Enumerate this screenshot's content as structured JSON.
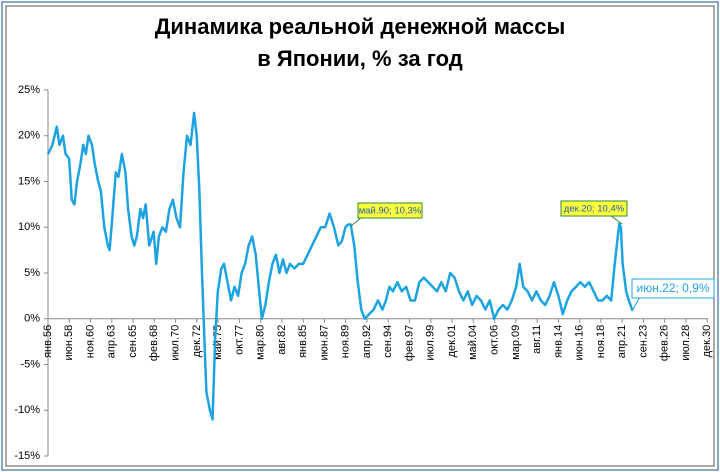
{
  "chart_data": {
    "type": "line",
    "title": [
      "Динамика реальной денежной массы",
      "в Японии, % за год"
    ],
    "color": "#1ea3e2",
    "xlim": [
      1956,
      2031
    ],
    "xticks": [
      {
        "value": 1956.0,
        "label": "янв.56"
      },
      {
        "value": 1958.417,
        "label": "июн.58"
      },
      {
        "value": 1960.833,
        "label": "ноя.60"
      },
      {
        "value": 1963.25,
        "label": "апр.63"
      },
      {
        "value": 1965.667,
        "label": "сен.65"
      },
      {
        "value": 1968.083,
        "label": "фев.68"
      },
      {
        "value": 1970.5,
        "label": "июл.70"
      },
      {
        "value": 1972.917,
        "label": "дек.72"
      },
      {
        "value": 1975.333,
        "label": "май.75"
      },
      {
        "value": 1977.75,
        "label": "окт.77"
      },
      {
        "value": 1980.167,
        "label": "мар.80"
      },
      {
        "value": 1982.583,
        "label": "авг.82"
      },
      {
        "value": 1985.0,
        "label": "янв.85"
      },
      {
        "value": 1987.417,
        "label": "июн.87"
      },
      {
        "value": 1989.833,
        "label": "ноя.89"
      },
      {
        "value": 1992.25,
        "label": "апр.92"
      },
      {
        "value": 1994.667,
        "label": "сен.94"
      },
      {
        "value": 1997.083,
        "label": "фев.97"
      },
      {
        "value": 1999.5,
        "label": "июл.99"
      },
      {
        "value": 2001.917,
        "label": "дек.01"
      },
      {
        "value": 2004.333,
        "label": "май.04"
      },
      {
        "value": 2006.75,
        "label": "окт.06"
      },
      {
        "value": 2009.167,
        "label": "мар.09"
      },
      {
        "value": 2011.583,
        "label": "авг.11"
      },
      {
        "value": 2014.0,
        "label": "янв.14"
      },
      {
        "value": 2016.417,
        "label": "июн.16"
      },
      {
        "value": 2018.833,
        "label": "ноя.18"
      },
      {
        "value": 2021.25,
        "label": "апр.21"
      },
      {
        "value": 2023.667,
        "label": "сен.23"
      },
      {
        "value": 2026.083,
        "label": "фев.26"
      },
      {
        "value": 2028.5,
        "label": "июл.28"
      },
      {
        "value": 2030.917,
        "label": "дек.30"
      }
    ],
    "ylim": [
      -15,
      25
    ],
    "yticks": [
      {
        "value": 25,
        "label": "25%"
      },
      {
        "value": 20,
        "label": "20%"
      },
      {
        "value": 15,
        "label": "15%"
      },
      {
        "value": 10,
        "label": "10%"
      },
      {
        "value": 5,
        "label": "5%"
      },
      {
        "value": 0,
        "label": "0%"
      },
      {
        "value": -5,
        "label": "-5%"
      },
      {
        "value": -10,
        "label": "-10%"
      },
      {
        "value": -15,
        "label": "-15%"
      }
    ],
    "x": [
      1956.0,
      1956.5,
      1957.0,
      1957.3,
      1957.7,
      1958.0,
      1958.4,
      1958.7,
      1959.0,
      1959.3,
      1959.7,
      1960.0,
      1960.3,
      1960.6,
      1961.0,
      1961.3,
      1961.7,
      1962.0,
      1962.4,
      1962.8,
      1963.0,
      1963.3,
      1963.7,
      1964.0,
      1964.4,
      1964.8,
      1965.1,
      1965.5,
      1965.8,
      1966.1,
      1966.5,
      1966.8,
      1967.1,
      1967.5,
      1968.0,
      1968.3,
      1968.6,
      1969.0,
      1969.4,
      1969.8,
      1970.2,
      1970.6,
      1971.0,
      1971.4,
      1971.8,
      1972.2,
      1972.6,
      1972.9,
      1973.2,
      1973.5,
      1973.8,
      1974.0,
      1974.4,
      1974.7,
      1975.0,
      1975.3,
      1975.7,
      1976.0,
      1976.4,
      1976.8,
      1977.2,
      1977.6,
      1978.0,
      1978.4,
      1978.8,
      1979.2,
      1979.6,
      1980.0,
      1980.3,
      1980.7,
      1981.1,
      1981.5,
      1981.9,
      1982.3,
      1982.7,
      1983.1,
      1983.5,
      1984.0,
      1984.5,
      1985.0,
      1985.5,
      1986.0,
      1986.5,
      1987.0,
      1987.5,
      1988.0,
      1988.5,
      1989.0,
      1989.4,
      1989.8,
      1990.1,
      1990.4,
      1990.8,
      1991.2,
      1991.6,
      1992.0,
      1992.5,
      1993.0,
      1993.5,
      1994.0,
      1994.4,
      1994.8,
      1995.2,
      1995.7,
      1996.2,
      1996.7,
      1997.2,
      1997.7,
      1998.2,
      1998.7,
      1999.2,
      1999.7,
      2000.2,
      2000.7,
      2001.2,
      2001.7,
      2002.2,
      2002.7,
      2003.2,
      2003.7,
      2004.2,
      2004.7,
      2005.2,
      2005.7,
      2006.2,
      2006.7,
      2007.2,
      2007.7,
      2008.2,
      2008.7,
      2009.2,
      2009.6,
      2010.0,
      2010.5,
      2011.0,
      2011.5,
      2012.0,
      2012.5,
      2013.0,
      2013.5,
      2014.0,
      2014.5,
      2015.0,
      2015.5,
      2016.0,
      2016.5,
      2017.0,
      2017.5,
      2018.0,
      2018.5,
      2019.0,
      2019.5,
      2020.0,
      2020.4,
      2020.917,
      2021.1,
      2021.3,
      2021.7,
      2022.0,
      2022.417
    ],
    "values": [
      18,
      19,
      21,
      19,
      20,
      18,
      17.5,
      13,
      12.5,
      15,
      17,
      19,
      18,
      20,
      19,
      17,
      15,
      14,
      10,
      8,
      7.5,
      11,
      16,
      15.5,
      18,
      16,
      12,
      9,
      8,
      9,
      12,
      11,
      12.5,
      8,
      9.5,
      6,
      9,
      10,
      9.5,
      12,
      13,
      11,
      10,
      16,
      20,
      19,
      22.5,
      20,
      14,
      5,
      -3,
      -8,
      -10,
      -11,
      -2,
      3,
      5.5,
      6,
      4,
      2,
      3.5,
      2.5,
      5,
      6,
      8,
      9,
      7,
      3,
      0,
      1.5,
      4,
      6,
      7,
      5,
      6.5,
      5,
      6,
      5.5,
      6,
      6,
      7,
      8,
      9,
      10,
      10,
      11.5,
      10,
      8,
      8.5,
      10,
      10.3,
      10.3,
      8,
      4,
      1,
      0,
      0.5,
      1,
      2,
      1,
      2,
      3.5,
      3,
      4,
      3,
      3.5,
      2,
      2,
      4,
      4.5,
      4,
      3.5,
      3,
      4,
      3,
      5,
      4.5,
      3,
      2,
      3,
      1.5,
      2.5,
      2,
      1,
      2,
      0,
      1,
      1.5,
      1,
      2,
      3.5,
      6,
      3.5,
      3,
      2,
      3,
      2,
      1.5,
      2.5,
      4,
      2.5,
      0.5,
      2,
      3,
      3.5,
      4,
      3.5,
      4,
      3,
      2,
      2,
      2.5,
      2,
      6,
      10.4,
      10,
      6,
      3,
      2,
      0.9
    ],
    "annotations": [
      "май.90; 10,3%",
      "дек.20; 10,4%",
      "июн.22; 0,9%"
    ]
  }
}
